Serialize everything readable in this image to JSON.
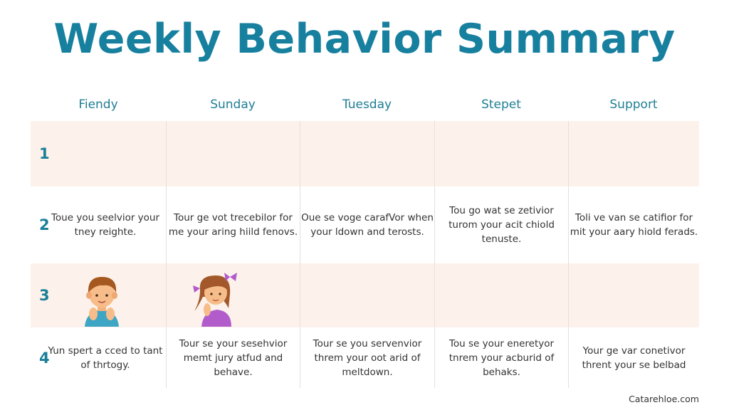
{
  "title": "Weekly Behavior Summary",
  "columns": [
    "Fiendy",
    "Sunday",
    "Tuesday",
    "Stepet",
    "Support"
  ],
  "rows": [
    {
      "number": "1",
      "cells": [
        "",
        "",
        "",
        "",
        ""
      ]
    },
    {
      "number": "2",
      "cells": [
        "Toue you seelvior your tney reighte.",
        "Tour ge vot trecebilor for me your aring hiild fenovs.",
        "Oue se voge carafVor when your ldown and terosts.",
        "Tou go wat se zetivior turom your acit chiold tenuste.",
        "Toli ve van se catifior for mit your aary hiold ferads."
      ]
    },
    {
      "number": "3",
      "cells": [
        "",
        "",
        "",
        "",
        ""
      ],
      "illustrations": [
        "boy-illustration",
        "girl-illustration"
      ]
    },
    {
      "number": "4",
      "cells": [
        "Yun spert a cced to tant of thrtogy.",
        "Tour se your sesehvior memt jury atfud and behave.",
        "Tour se you servenvior threm your oot arid of meltdown.",
        "Tou se your eneretyor tnrem your acburid of behaks.",
        "Your ge var conetivor thrent your se belbad"
      ]
    }
  ],
  "footer": "Catarehloe.com",
  "colors": {
    "title": "#17809f",
    "peach_row": "#fdf2eb",
    "row_number": "#1a7f98"
  }
}
